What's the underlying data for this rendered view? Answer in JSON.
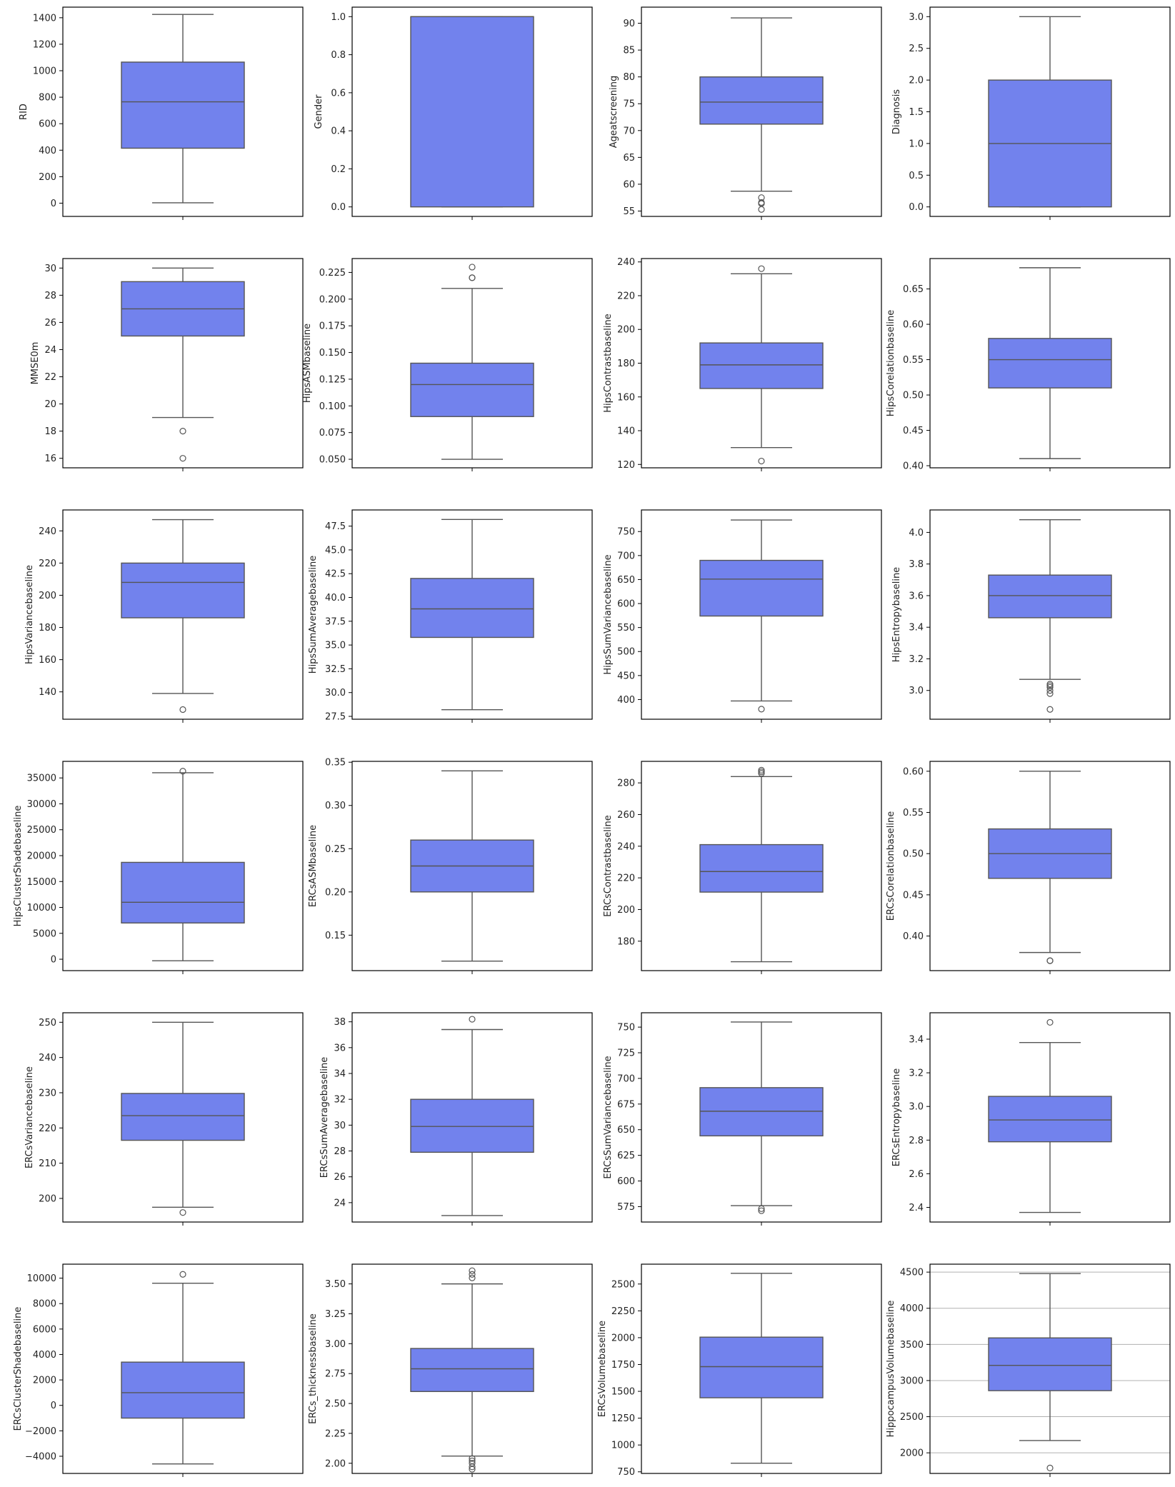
{
  "style": {
    "box_fill": "#7282ed",
    "line_color": "#555555",
    "frame_color": "#000000",
    "grid_color": "#b0b0b0",
    "outlier_stroke": "#555555"
  },
  "chart_data": [
    {
      "type": "box",
      "ylabel": "RID",
      "ylim": [
        -100,
        1480
      ],
      "yticks": [
        0,
        200,
        400,
        600,
        800,
        1000,
        1200,
        1400
      ],
      "grid": false,
      "box": {
        "whislo": 3,
        "q1": 415,
        "med": 765,
        "q3": 1065,
        "whishi": 1425
      },
      "fliers": []
    },
    {
      "type": "box",
      "ylabel": "Gender",
      "ylim": [
        -0.05,
        1.05
      ],
      "yticks": [
        0.0,
        0.2,
        0.4,
        0.6,
        0.8,
        1.0
      ],
      "grid": false,
      "box": {
        "whislo": 0,
        "q1": 0,
        "med": 1,
        "q3": 1,
        "whishi": 1
      },
      "fliers": []
    },
    {
      "type": "box",
      "ylabel": "Ageatscreening",
      "ylim": [
        54,
        93
      ],
      "yticks": [
        55,
        60,
        65,
        70,
        75,
        80,
        85,
        90
      ],
      "grid": false,
      "box": {
        "whislo": 58.7,
        "q1": 71.2,
        "med": 75.3,
        "q3": 80,
        "whishi": 91
      },
      "fliers": [
        57.5,
        56.6,
        56.4,
        55.3
      ]
    },
    {
      "type": "box",
      "ylabel": "Diagnosis",
      "ylim": [
        -0.15,
        3.15
      ],
      "yticks": [
        0.0,
        0.5,
        1.0,
        1.5,
        2.0,
        2.5,
        3.0
      ],
      "grid": false,
      "box": {
        "whislo": 0,
        "q1": 0,
        "med": 1,
        "q3": 2,
        "whishi": 3
      },
      "fliers": []
    },
    {
      "type": "box",
      "ylabel": "MMSE0m",
      "ylim": [
        15.3,
        30.7
      ],
      "yticks": [
        16,
        18,
        20,
        22,
        24,
        26,
        28,
        30
      ],
      "grid": false,
      "box": {
        "whislo": 19,
        "q1": 25,
        "med": 27,
        "q3": 29,
        "whishi": 30
      },
      "fliers": [
        18,
        16
      ]
    },
    {
      "type": "box",
      "ylabel": "HipsASMbaseline",
      "ylim": [
        0.042,
        0.238
      ],
      "yticks": [
        0.05,
        0.075,
        0.1,
        0.125,
        0.15,
        0.175,
        0.2,
        0.225
      ],
      "grid": false,
      "box": {
        "whislo": 0.05,
        "q1": 0.09,
        "med": 0.12,
        "q3": 0.14,
        "whishi": 0.21
      },
      "fliers": [
        0.22,
        0.22,
        0.23
      ]
    },
    {
      "type": "box",
      "ylabel": "HipsContrastbaseline",
      "ylim": [
        118,
        242
      ],
      "yticks": [
        120,
        140,
        160,
        180,
        200,
        220,
        240
      ],
      "grid": false,
      "box": {
        "whislo": 130,
        "q1": 165,
        "med": 179,
        "q3": 192,
        "whishi": 233
      },
      "fliers": [
        122,
        236
      ]
    },
    {
      "type": "box",
      "ylabel": "HipsCorelationbaseline",
      "ylim": [
        0.397,
        0.693
      ],
      "yticks": [
        0.4,
        0.45,
        0.5,
        0.55,
        0.6,
        0.65
      ],
      "grid": false,
      "box": {
        "whislo": 0.41,
        "q1": 0.51,
        "med": 0.55,
        "q3": 0.58,
        "whishi": 0.68
      },
      "fliers": []
    },
    {
      "type": "box",
      "ylabel": "HipsVariancebaseline",
      "ylim": [
        123,
        253
      ],
      "yticks": [
        140,
        160,
        180,
        200,
        220,
        240
      ],
      "grid": false,
      "box": {
        "whislo": 139,
        "q1": 186,
        "med": 208,
        "q3": 220,
        "whishi": 247
      },
      "fliers": [
        129
      ]
    },
    {
      "type": "box",
      "ylabel": "HipsSumAveragebaseline",
      "ylim": [
        27.2,
        49.2
      ],
      "yticks": [
        27.5,
        30.0,
        32.5,
        35.0,
        37.5,
        40.0,
        42.5,
        45.0,
        47.5
      ],
      "grid": false,
      "box": {
        "whislo": 28.2,
        "q1": 35.8,
        "med": 38.8,
        "q3": 42.0,
        "whishi": 48.2
      },
      "fliers": []
    },
    {
      "type": "box",
      "ylabel": "HipsSumVariancebaseline",
      "ylim": [
        359,
        795
      ],
      "yticks": [
        400,
        450,
        500,
        550,
        600,
        650,
        700,
        750
      ],
      "grid": false,
      "box": {
        "whislo": 397,
        "q1": 574,
        "med": 651,
        "q3": 690,
        "whishi": 774
      },
      "fliers": [
        380
      ]
    },
    {
      "type": "box",
      "ylabel": "HipsEntropybaseline",
      "ylim": [
        2.818,
        4.142
      ],
      "yticks": [
        3.0,
        3.2,
        3.4,
        3.6,
        3.8,
        4.0
      ],
      "grid": false,
      "box": {
        "whislo": 3.07,
        "q1": 3.46,
        "med": 3.6,
        "q3": 3.73,
        "whishi": 4.08
      },
      "fliers": [
        3.04,
        3.03,
        3.02,
        3.0,
        2.98,
        2.88
      ]
    },
    {
      "type": "box",
      "ylabel": "HipsClusterShadebaseline",
      "ylim": [
        -2200,
        38200
      ],
      "yticks": [
        0,
        5000,
        10000,
        15000,
        20000,
        25000,
        30000,
        35000
      ],
      "grid": false,
      "box": {
        "whislo": -300,
        "q1": 7000,
        "med": 11000,
        "q3": 18700,
        "whishi": 36000
      },
      "fliers": [
        36300
      ]
    },
    {
      "type": "box",
      "ylabel": "ERCsASMbaseline",
      "ylim": [
        0.109,
        0.351
      ],
      "yticks": [
        0.15,
        0.2,
        0.25,
        0.3,
        0.35
      ],
      "grid": false,
      "box": {
        "whislo": 0.12,
        "q1": 0.2,
        "med": 0.23,
        "q3": 0.26,
        "whishi": 0.34
      },
      "fliers": []
    },
    {
      "type": "box",
      "ylabel": "ERCsContrastbaseline",
      "ylim": [
        161.4,
        293.6
      ],
      "yticks": [
        180,
        200,
        220,
        240,
        260,
        280
      ],
      "grid": false,
      "box": {
        "whislo": 167,
        "q1": 211,
        "med": 224,
        "q3": 241,
        "whishi": 284
      },
      "fliers": [
        286,
        287,
        288
      ]
    },
    {
      "type": "box",
      "ylabel": "ERCsCorelationbaseline",
      "ylim": [
        0.358,
        0.612
      ],
      "yticks": [
        0.4,
        0.45,
        0.5,
        0.55,
        0.6
      ],
      "grid": false,
      "box": {
        "whislo": 0.38,
        "q1": 0.47,
        "med": 0.5,
        "q3": 0.53,
        "whishi": 0.6
      },
      "fliers": [
        0.37,
        0.37
      ]
    },
    {
      "type": "box",
      "ylabel": "ERCsVariancebaseline",
      "ylim": [
        193.3,
        252.7
      ],
      "yticks": [
        200,
        210,
        220,
        230,
        240,
        250
      ],
      "grid": false,
      "box": {
        "whislo": 197.5,
        "q1": 216.5,
        "med": 223.5,
        "q3": 229.8,
        "whishi": 250
      },
      "fliers": [
        196
      ]
    },
    {
      "type": "box",
      "ylabel": "ERCsSumAveragebaseline",
      "ylim": [
        22.5,
        38.7
      ],
      "yticks": [
        24,
        26,
        28,
        30,
        32,
        34,
        36,
        38
      ],
      "grid": false,
      "box": {
        "whislo": 23,
        "q1": 27.9,
        "med": 29.9,
        "q3": 32,
        "whishi": 37.4
      },
      "fliers": [
        38.2
      ]
    },
    {
      "type": "box",
      "ylabel": "ERCsSumVariancebaseline",
      "ylim": [
        560,
        764
      ],
      "yticks": [
        575,
        600,
        625,
        650,
        675,
        700,
        725,
        750
      ],
      "grid": false,
      "box": {
        "whislo": 576,
        "q1": 644,
        "med": 668,
        "q3": 691,
        "whishi": 755
      },
      "fliers": [
        573,
        571
      ]
    },
    {
      "type": "box",
      "ylabel": "ERCsEntropybaseline",
      "ylim": [
        2.313,
        3.557
      ],
      "yticks": [
        2.4,
        2.6,
        2.8,
        3.0,
        3.2,
        3.4
      ],
      "grid": false,
      "box": {
        "whislo": 2.37,
        "q1": 2.79,
        "med": 2.92,
        "q3": 3.06,
        "whishi": 3.38
      },
      "fliers": [
        3.5
      ]
    },
    {
      "type": "box",
      "ylabel": "ERCsClusterShadebaseline",
      "ylim": [
        -5350,
        11100
      ],
      "yticks": [
        -4000,
        -2000,
        0,
        2000,
        4000,
        6000,
        8000,
        10000
      ],
      "grid": false,
      "box": {
        "whislo": -4600,
        "q1": -1000,
        "med": 1000,
        "q3": 3400,
        "whishi": 9600
      },
      "fliers": [
        10300
      ]
    },
    {
      "type": "box",
      "ylabel": "ERCs_thicknessbaseline",
      "ylim": [
        1.915,
        3.665
      ],
      "yticks": [
        2.0,
        2.25,
        2.5,
        2.75,
        3.0,
        3.25,
        3.5
      ],
      "grid": false,
      "box": {
        "whislo": 2.06,
        "q1": 2.6,
        "med": 2.79,
        "q3": 2.96,
        "whishi": 3.5
      },
      "fliers": [
        3.55,
        3.58,
        3.61,
        2.04,
        2.02,
        2.0,
        1.97,
        1.95
      ]
    },
    {
      "type": "box",
      "ylabel": "ERCsVolumebaseline",
      "ylim": [
        735,
        2685
      ],
      "yticks": [
        750,
        1000,
        1250,
        1500,
        1750,
        2000,
        2250,
        2500
      ],
      "grid": false,
      "box": {
        "whislo": 830,
        "q1": 1440,
        "med": 1730,
        "q3": 2005,
        "whishi": 2600
      },
      "fliers": []
    },
    {
      "type": "box",
      "ylabel": "HippocampusVolumebaseline",
      "ylim": [
        1715,
        4610
      ],
      "yticks": [
        2000,
        2500,
        3000,
        3500,
        4000,
        4500
      ],
      "grid": true,
      "box": {
        "whislo": 2170,
        "q1": 2860,
        "med": 3210,
        "q3": 3590,
        "whishi": 4480
      },
      "fliers": [
        1790
      ]
    }
  ]
}
